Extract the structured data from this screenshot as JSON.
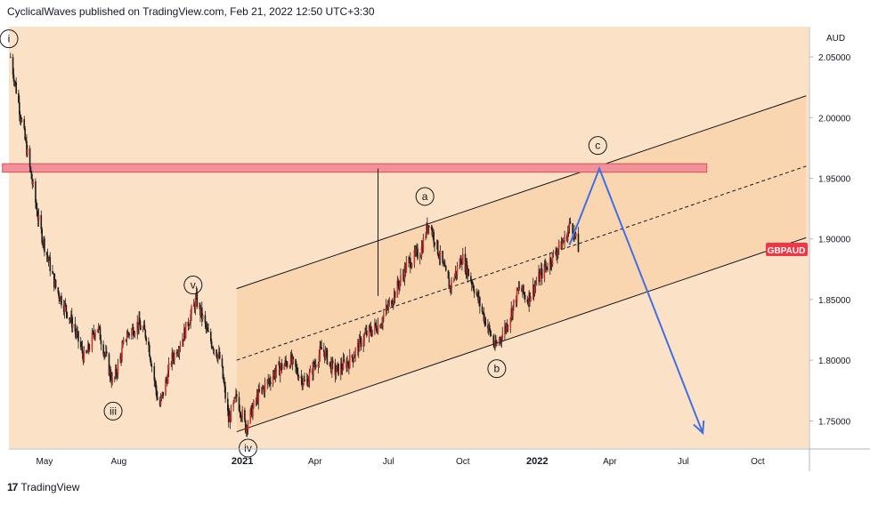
{
  "header": {
    "text": "CyclicalWaves published on TradingView.com, Feb 21, 2022 12:50 UTC+3:30"
  },
  "footer": {
    "logo_icon": "tradingview-logo-icon",
    "brand": "TradingView"
  },
  "colors": {
    "background": "#fbe2c6",
    "channel_fill": "#f8d2a8",
    "resistance_zone": "#f0909a",
    "resistance_border": "#d9534f",
    "price_badge": "#f23645",
    "arrow": "#3f6fe6",
    "candle": "#1c1c1c",
    "candle_up_accent": "#d32f2f"
  },
  "chart_data": {
    "type": "candlestick",
    "symbol": "GBPAUD",
    "currency": "AUD",
    "y_ticks": [
      "2.05000",
      "2.00000",
      "1.95000",
      "1.90000",
      "1.85000",
      "1.80000",
      "1.75000"
    ],
    "x_ticks": [
      {
        "label": "May",
        "bold": false
      },
      {
        "label": "Aug",
        "bold": false
      },
      {
        "label": "2021",
        "bold": true
      },
      {
        "label": "Apr",
        "bold": false
      },
      {
        "label": "Jul",
        "bold": false
      },
      {
        "label": "Oct",
        "bold": false
      },
      {
        "label": "2022",
        "bold": true
      },
      {
        "label": "Apr",
        "bold": false
      },
      {
        "label": "Jul",
        "bold": false
      },
      {
        "label": "Oct",
        "bold": false
      }
    ],
    "ylim": [
      1.7275,
      2.075
    ],
    "last_price_label": "GBPAUD",
    "approx_close_path": [
      [
        "2020-03-20",
        2.05
      ],
      [
        "2020-04-10",
        1.97
      ],
      [
        "2020-04-25",
        1.91
      ],
      [
        "2020-05-15",
        1.86
      ],
      [
        "2020-06-05",
        1.83
      ],
      [
        "2020-06-20",
        1.8
      ],
      [
        "2020-07-05",
        1.83
      ],
      [
        "2020-07-25",
        1.78
      ],
      [
        "2020-08-10",
        1.82
      ],
      [
        "2020-08-25",
        1.83
      ],
      [
        "2020-09-05",
        1.82
      ],
      [
        "2020-09-20",
        1.76
      ],
      [
        "2020-10-05",
        1.8
      ],
      [
        "2020-10-20",
        1.82
      ],
      [
        "2020-11-05",
        1.85
      ],
      [
        "2020-11-20",
        1.82
      ],
      [
        "2020-12-05",
        1.8
      ],
      [
        "2020-12-15",
        1.75
      ],
      [
        "2020-12-25",
        1.77
      ],
      [
        "2021-01-05",
        1.745
      ],
      [
        "2021-01-20",
        1.77
      ],
      [
        "2021-02-10",
        1.79
      ],
      [
        "2021-03-01",
        1.8
      ],
      [
        "2021-03-20",
        1.78
      ],
      [
        "2021-04-10",
        1.81
      ],
      [
        "2021-04-25",
        1.79
      ],
      [
        "2021-05-15",
        1.8
      ],
      [
        "2021-06-01",
        1.82
      ],
      [
        "2021-06-20",
        1.83
      ],
      [
        "2021-07-05",
        1.85
      ],
      [
        "2021-07-25",
        1.88
      ],
      [
        "2021-08-10",
        1.89
      ],
      [
        "2021-08-20",
        1.915
      ],
      [
        "2021-09-05",
        1.88
      ],
      [
        "2021-09-15",
        1.86
      ],
      [
        "2021-09-30",
        1.885
      ],
      [
        "2021-10-15",
        1.86
      ],
      [
        "2021-10-25",
        1.84
      ],
      [
        "2021-11-05",
        1.82
      ],
      [
        "2021-11-10",
        1.81
      ],
      [
        "2021-11-25",
        1.83
      ],
      [
        "2021-12-10",
        1.86
      ],
      [
        "2021-12-20",
        1.85
      ],
      [
        "2022-01-05",
        1.87
      ],
      [
        "2022-01-15",
        1.88
      ],
      [
        "2022-01-25",
        1.89
      ],
      [
        "2022-02-05",
        1.9
      ],
      [
        "2022-02-12",
        1.915
      ],
      [
        "2022-02-21",
        1.89
      ]
    ],
    "wave_labels": [
      {
        "label": "i",
        "date": "2020-03-18",
        "value": 2.065
      },
      {
        "label": "iii",
        "date": "2020-07-25",
        "value": 1.758
      },
      {
        "label": "v",
        "date": "2020-11-01",
        "value": 1.862
      },
      {
        "label": "iv",
        "date": "2021-01-08",
        "value": 1.7275
      },
      {
        "label": "a",
        "date": "2021-08-15",
        "value": 1.935
      },
      {
        "label": "b",
        "date": "2021-11-12",
        "value": 1.793
      },
      {
        "label": "c",
        "date": "2022-03-17",
        "value": 1.977
      }
    ],
    "resistance_zone": {
      "from": "2020-03-10",
      "to": "2022-07-30",
      "low": 1.955,
      "high": 1.962
    },
    "channel": {
      "lower": [
        [
          "2020-12-25",
          1.741
        ],
        [
          "2022-11-30",
          1.901
        ]
      ],
      "upper": [
        [
          "2020-12-25",
          1.859
        ],
        [
          "2022-11-30",
          2.018
        ]
      ],
      "mid": [
        [
          "2020-12-25",
          1.8
        ],
        [
          "2022-11-30",
          1.96
        ]
      ]
    },
    "projection_path": [
      [
        "2022-02-10",
        1.895
      ],
      [
        "2022-03-19",
        1.958
      ],
      [
        "2022-07-25",
        1.74
      ]
    ],
    "measure_line": {
      "date": "2021-06-18",
      "from": 1.853,
      "to": 1.958
    }
  }
}
